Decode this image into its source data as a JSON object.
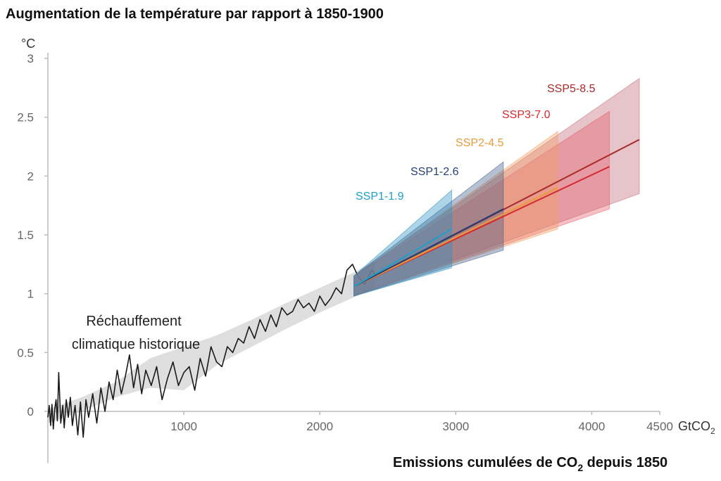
{
  "chart_data": {
    "type": "line",
    "title": "Augmentation de la température par rapport à 1850-1900",
    "ylabel": "°C",
    "xlabel": {
      "prefix": "Emissions cumulées de CO",
      "sub": "2",
      "suffix": " depuis 1850"
    },
    "x_unit": {
      "prefix": "GtCO",
      "sub": "2"
    },
    "xlim": [
      0,
      4500
    ],
    "ylim": [
      -0.35,
      3
    ],
    "x_ticks": [
      1000,
      2000,
      3000,
      4000,
      4500
    ],
    "x_tick_labels": [
      "1000",
      "2000",
      "3000",
      "4000",
      "4500"
    ],
    "y_ticks": [
      0,
      0.5,
      1,
      1.5,
      2,
      2.5,
      3
    ],
    "y_tick_labels": [
      "0",
      "0.5",
      "1",
      "1.5",
      "2",
      "2.5",
      "3"
    ],
    "grid": false,
    "annotation": [
      "Réchauffement",
      "climatique historique"
    ],
    "history_band": {
      "x": [
        0,
        250,
        500,
        750,
        1000,
        1250,
        1500,
        1750,
        2000,
        2250,
        2400
      ],
      "lower": [
        -0.1,
        0.0,
        0.12,
        0.2,
        0.18,
        0.4,
        0.55,
        0.7,
        0.84,
        0.97,
        1.05
      ],
      "upper": [
        0.02,
        0.12,
        0.25,
        0.45,
        0.55,
        0.65,
        0.78,
        0.92,
        1.05,
        1.18,
        1.28
      ]
    },
    "history": {
      "x": [
        0,
        10,
        20,
        30,
        40,
        50,
        60,
        70,
        80,
        95,
        110,
        120,
        135,
        150,
        165,
        180,
        200,
        220,
        240,
        260,
        280,
        300,
        330,
        360,
        390,
        420,
        450,
        480,
        510,
        540,
        570,
        600,
        630,
        660,
        690,
        720,
        760,
        800,
        840,
        880,
        920,
        960,
        1000,
        1040,
        1080,
        1120,
        1160,
        1200,
        1240,
        1280,
        1320,
        1360,
        1400,
        1440,
        1480,
        1520,
        1560,
        1600,
        1640,
        1680,
        1720,
        1760,
        1800,
        1840,
        1880,
        1920,
        1960,
        2000,
        2040,
        2080,
        2120,
        2160,
        2200,
        2240,
        2280,
        2330,
        2380,
        2420
      ],
      "y": [
        -0.05,
        0.05,
        -0.12,
        0.06,
        -0.15,
        0.02,
        0.1,
        -0.08,
        0.33,
        -0.1,
        0.05,
        -0.14,
        0.1,
        -0.05,
        0.12,
        -0.12,
        0.05,
        -0.2,
        0.08,
        -0.22,
        0.1,
        -0.05,
        0.15,
        -0.1,
        0.2,
        0.0,
        0.25,
        0.1,
        0.35,
        0.15,
        0.3,
        0.48,
        0.2,
        0.4,
        0.15,
        0.35,
        0.22,
        0.38,
        0.1,
        0.28,
        0.42,
        0.22,
        0.33,
        0.38,
        0.18,
        0.45,
        0.3,
        0.55,
        0.42,
        0.38,
        0.55,
        0.5,
        0.62,
        0.58,
        0.72,
        0.62,
        0.78,
        0.68,
        0.82,
        0.72,
        0.88,
        0.82,
        0.85,
        0.95,
        0.88,
        0.92,
        0.85,
        0.98,
        0.9,
        0.96,
        1.05,
        1.0,
        1.2,
        1.25,
        1.15,
        1.08,
        1.2,
        1.15
      ]
    },
    "series": [
      {
        "name": "SSP1-1.9",
        "color": "#1f9ec8",
        "fill": "#2b8fc0",
        "x": [
          2250,
          2970
        ],
        "y": [
          1.06,
          1.55
        ],
        "band_x": [
          2250,
          2970
        ],
        "band_lower": [
          0.98,
          1.22
        ],
        "band_upper": [
          1.15,
          1.88
        ]
      },
      {
        "name": "SSP1-2.6",
        "color": "#243f73",
        "fill": "#3d5a8a",
        "x": [
          2250,
          3350
        ],
        "y": [
          1.06,
          1.72
        ],
        "band_x": [
          2250,
          3350
        ],
        "band_lower": [
          0.98,
          1.37
        ],
        "band_upper": [
          1.15,
          2.12
        ]
      },
      {
        "name": "SSP2-4.5",
        "color": "#e89a3c",
        "fill": "#f29e60",
        "x": [
          2250,
          3750
        ],
        "y": [
          1.06,
          1.9
        ],
        "band_x": [
          2250,
          3750
        ],
        "band_lower": [
          0.98,
          1.55
        ],
        "band_upper": [
          1.15,
          2.38
        ]
      },
      {
        "name": "SSP3-7.0",
        "color": "#d62a2f",
        "fill": "#e65a6a",
        "x": [
          2250,
          4130
        ],
        "y": [
          1.06,
          2.08
        ],
        "band_x": [
          2250,
          4130
        ],
        "band_lower": [
          0.98,
          1.72
        ],
        "band_upper": [
          1.15,
          2.55
        ]
      },
      {
        "name": "SSP5-8.5",
        "color": "#a82a2a",
        "fill": "#c06570",
        "x": [
          2250,
          4350
        ],
        "y": [
          1.06,
          2.31
        ],
        "band_x": [
          2250,
          4350
        ],
        "band_lower": [
          0.98,
          1.85
        ],
        "band_upper": [
          1.15,
          2.83
        ]
      }
    ]
  }
}
